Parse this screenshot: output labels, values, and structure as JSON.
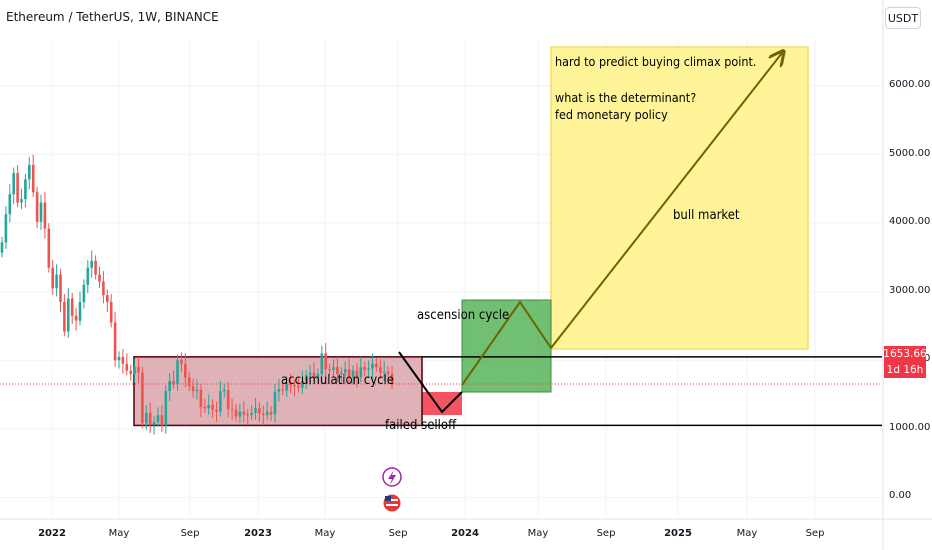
{
  "header": {
    "title": "Ethereum / TetherUS, 1W, BINANCE",
    "currency_button": "USDT"
  },
  "price_axis": {
    "ticks": [
      "6000.00",
      "5000.00",
      "4000.00",
      "3000.00",
      "2000.00",
      "1000.00",
      "0.00"
    ],
    "last_price": "1653.66",
    "countdown": "1d 16h"
  },
  "time_axis": {
    "ticks": [
      {
        "label": "2022",
        "bold": true
      },
      {
        "label": "May",
        "bold": false
      },
      {
        "label": "Sep",
        "bold": false
      },
      {
        "label": "2023",
        "bold": true
      },
      {
        "label": "May",
        "bold": false
      },
      {
        "label": "Sep",
        "bold": false
      },
      {
        "label": "2024",
        "bold": true
      },
      {
        "label": "May",
        "bold": false
      },
      {
        "label": "Sep",
        "bold": false
      },
      {
        "label": "2025",
        "bold": true
      },
      {
        "label": "May",
        "bold": false
      },
      {
        "label": "Sep",
        "bold": false
      }
    ]
  },
  "annotations": {
    "accumulation": "accumulation cycle",
    "failed": "failed selloff",
    "ascension": "ascension cycle",
    "bull": "bull market",
    "note_line1": "hard to predict buying climax point.",
    "note_line2": "what is the determinant?",
    "note_line3": "fed monetary policy"
  },
  "colors": {
    "up": "#26a69a",
    "down": "#ef5350",
    "accumulation_box": "#c97f87",
    "failed_box": "#f23645",
    "ascension_box": "#4caf50",
    "bull_box": "#fff176",
    "arrow": "#6b6400",
    "last_price": "#f23645"
  },
  "chart_data": {
    "type": "candlestick",
    "title": "Ethereum / TetherUS, 1W, BINANCE",
    "y_range": [
      -300,
      6700
    ],
    "support_level": 1050,
    "resistance_level": 2050,
    "closes": [
      3720,
      4130,
      4420,
      4730,
      4300,
      4350,
      4640,
      4850,
      4450,
      4020,
      4300,
      3920,
      3350,
      3050,
      3250,
      2850,
      2420,
      2900,
      2650,
      2580,
      2850,
      3100,
      3350,
      3450,
      3250,
      3150,
      2950,
      2850,
      2550,
      2000,
      2050,
      1950,
      1850,
      1800,
      1900,
      1820,
      1080,
      1230,
      1060,
      1100,
      1200,
      1050,
      1550,
      1700,
      1650,
      2000,
      1950,
      1750,
      1620,
      1550,
      1570,
      1320,
      1300,
      1350,
      1280,
      1250,
      1550,
      1570,
      1290,
      1280,
      1180,
      1250,
      1210,
      1200,
      1230,
      1300,
      1220,
      1200,
      1250,
      1210,
      1540,
      1580,
      1560,
      1650,
      1640,
      1620,
      1600,
      1700,
      1780,
      1820,
      1750,
      1800,
      2100,
      1870,
      1860,
      1900,
      1800,
      1820,
      1870,
      1760,
      1850,
      1750,
      1900,
      1860,
      1880,
      1950,
      1900,
      1820,
      1840,
      1800,
      1650
    ]
  }
}
